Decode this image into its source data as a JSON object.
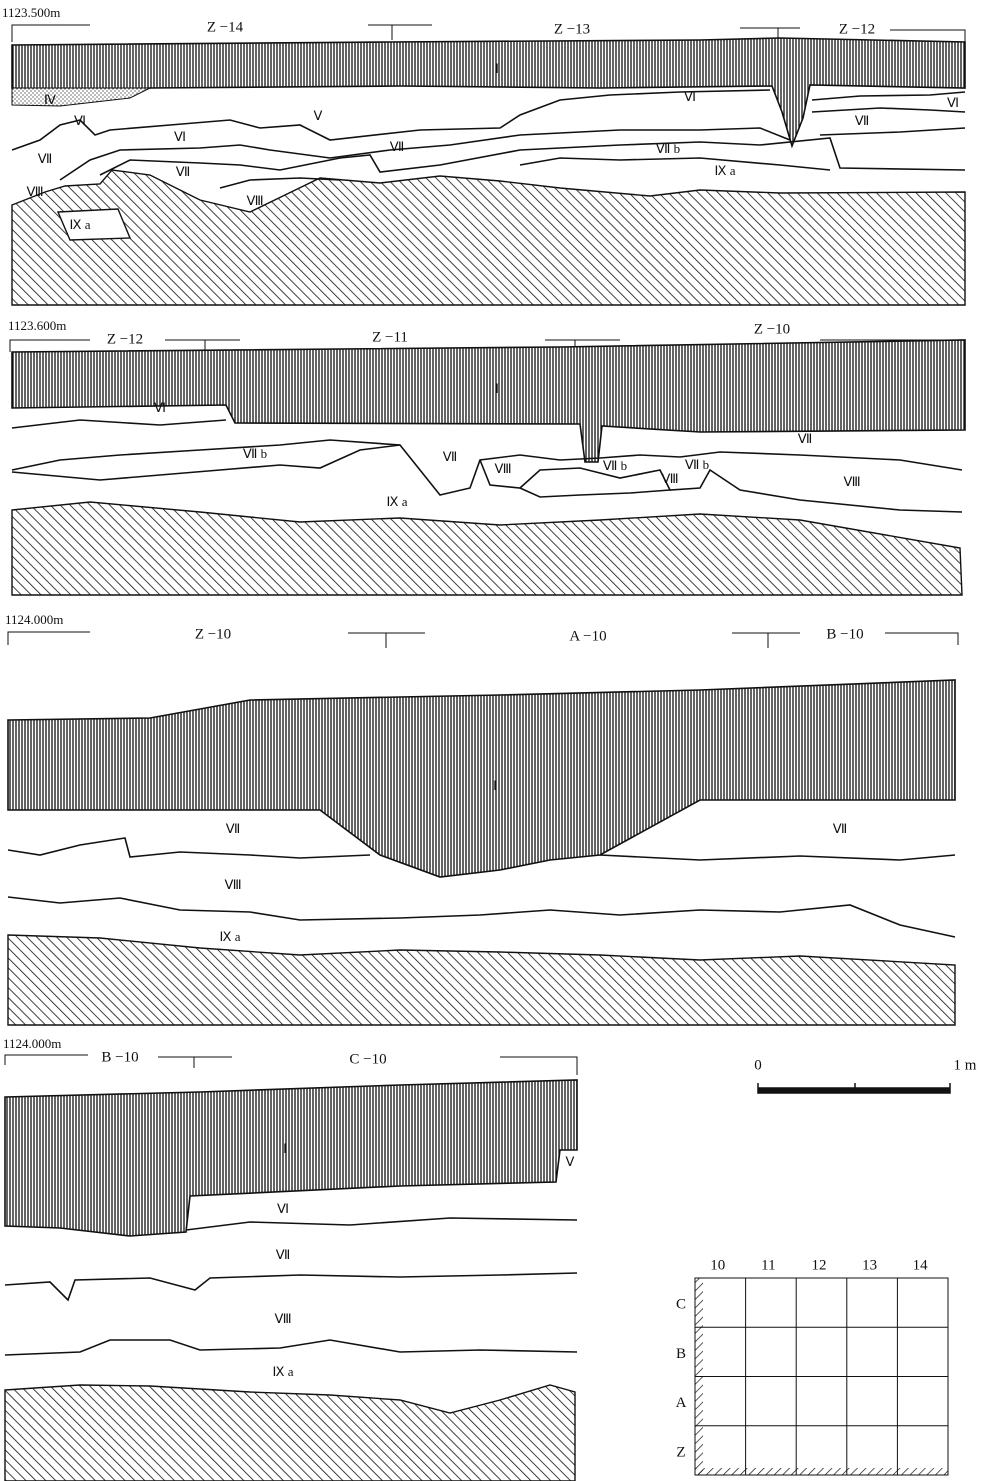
{
  "sections": [
    {
      "elevation": "1123.500m",
      "grid_labels": [
        "Z −14",
        "Z −13",
        "Z −12"
      ],
      "layers": [
        "Ⅰ",
        "Ⅳ",
        "Ⅵ",
        "Ⅴ",
        "Ⅵ",
        "Ⅶ",
        "Ⅶ",
        "Ⅶ",
        "Ⅷ",
        "Ⅸ a",
        "Ⅷ",
        "Ⅶ b",
        "Ⅸ a",
        "Ⅵ",
        "Ⅶ",
        "Ⅵ"
      ]
    },
    {
      "elevation": "1123.600m",
      "grid_labels": [
        "Z −12",
        "Z −11",
        "Z −10"
      ],
      "layers": [
        "Ⅰ",
        "Ⅵ",
        "Ⅶ b",
        "Ⅶ",
        "Ⅷ",
        "Ⅶ b",
        "Ⅷ",
        "Ⅶ b",
        "Ⅶ",
        "Ⅷ",
        "Ⅸ a"
      ]
    },
    {
      "elevation": "1124.000m",
      "grid_labels": [
        "Z −10",
        "A −10",
        "B −10"
      ],
      "layers": [
        "Ⅰ",
        "Ⅶ",
        "Ⅶ",
        "Ⅷ",
        "Ⅸ a"
      ]
    },
    {
      "elevation": "1124.000m",
      "grid_labels": [
        "B −10",
        "C −10"
      ],
      "layers": [
        "Ⅰ",
        "Ⅴ",
        "Ⅵ",
        "Ⅶ",
        "Ⅷ",
        "Ⅸ a"
      ]
    }
  ],
  "scale": {
    "start": "0",
    "end": "1 m"
  },
  "grid_plan": {
    "columns": [
      "10",
      "11",
      "12",
      "13",
      "14"
    ],
    "rows": [
      "C",
      "B",
      "A",
      "Z"
    ]
  }
}
